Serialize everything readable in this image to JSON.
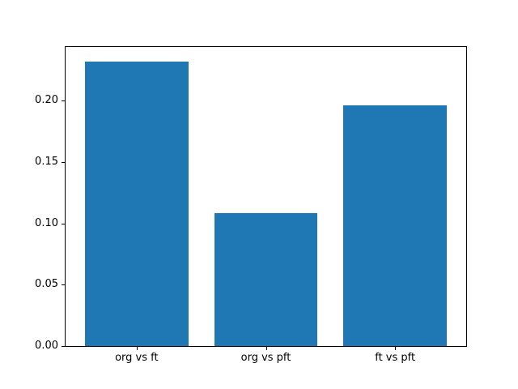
{
  "chart_data": {
    "type": "bar",
    "categories": [
      "org vs ft",
      "org vs pft",
      "ft vs pft"
    ],
    "values": [
      0.232,
      0.108,
      0.196
    ],
    "title": "",
    "xlabel": "",
    "ylabel": "",
    "ylim": [
      0,
      0.2436
    ],
    "xlim": [
      -0.55,
      2.55
    ],
    "bar_width": 0.8,
    "yticks": [
      0.0,
      0.05,
      0.1,
      0.15,
      0.2
    ],
    "ytick_labels": [
      "0.00",
      "0.05",
      "0.10",
      "0.15",
      "0.20"
    ],
    "bar_color": "#1f77b4",
    "frame_color": "#000000",
    "background_color": "#ffffff",
    "grid": false,
    "legend": false
  }
}
